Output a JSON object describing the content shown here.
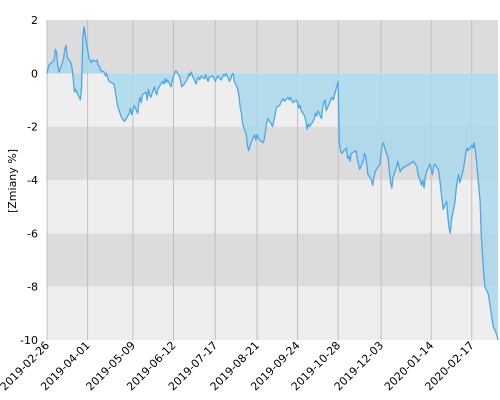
{
  "chart_data": {
    "type": "area",
    "title": "",
    "xlabel": "",
    "ylabel": "[Zmiany %]",
    "ylim": [
      -10,
      2
    ],
    "yticks": [
      2,
      0,
      -2,
      -4,
      -6,
      -8,
      -10
    ],
    "xlim": [
      "2019-02-26",
      "2020-03-10"
    ],
    "xticks": [
      "2019-02-26",
      "2019-04-01",
      "2019-05-09",
      "2019-06-12",
      "2019-07-17",
      "2019-08-21",
      "2019-09-24",
      "2019-10-28",
      "2019-12-03",
      "2020-01-14",
      "2020-02-17"
    ],
    "grid": true,
    "legend": "none",
    "colors": {
      "line": "#4da6e8",
      "fill": "#a9d8ec",
      "band_dark": "#dcdcdc",
      "band_light": "#eeeeee",
      "vgrid": "#c0c0c0"
    },
    "series": [
      {
        "points": [
          [
            "2019-02-26",
            0.0
          ],
          [
            "2019-02-27",
            0.2
          ],
          [
            "2019-02-28",
            0.35
          ],
          [
            "2019-03-01",
            0.35
          ],
          [
            "2019-03-04",
            0.5
          ],
          [
            "2019-03-05",
            0.9
          ],
          [
            "2019-03-06",
            0.8
          ],
          [
            "2019-03-07",
            0.3
          ],
          [
            "2019-03-08",
            0.05
          ],
          [
            "2019-03-11",
            0.4
          ],
          [
            "2019-03-12",
            0.6
          ],
          [
            "2019-03-13",
            0.9
          ],
          [
            "2019-03-14",
            1.05
          ],
          [
            "2019-03-15",
            0.6
          ],
          [
            "2019-03-18",
            0.4
          ],
          [
            "2019-03-19",
            0.2
          ],
          [
            "2019-03-20",
            -0.2
          ],
          [
            "2019-03-21",
            -0.7
          ],
          [
            "2019-03-22",
            -0.6
          ],
          [
            "2019-03-25",
            -0.9
          ],
          [
            "2019-03-26",
            -1.0
          ],
          [
            "2019-03-27",
            -0.5
          ],
          [
            "2019-03-28",
            1.3
          ],
          [
            "2019-03-29",
            1.75
          ],
          [
            "2019-04-01",
            0.9
          ],
          [
            "2019-04-02",
            0.6
          ],
          [
            "2019-04-03",
            0.5
          ],
          [
            "2019-04-04",
            0.4
          ],
          [
            "2019-04-05",
            0.5
          ],
          [
            "2019-04-08",
            0.45
          ],
          [
            "2019-04-09",
            0.5
          ],
          [
            "2019-04-10",
            0.3
          ],
          [
            "2019-04-11",
            0.25
          ],
          [
            "2019-04-12",
            0.1
          ],
          [
            "2019-04-15",
            0.05
          ],
          [
            "2019-04-16",
            -0.1
          ],
          [
            "2019-04-17",
            0.0
          ],
          [
            "2019-04-18",
            -0.2
          ],
          [
            "2019-04-19",
            -0.3
          ],
          [
            "2019-04-23",
            -0.4
          ],
          [
            "2019-04-24",
            -0.6
          ],
          [
            "2019-04-25",
            -0.9
          ],
          [
            "2019-04-26",
            -1.2
          ],
          [
            "2019-04-29",
            -1.6
          ],
          [
            "2019-04-30",
            -1.7
          ],
          [
            "2019-05-02",
            -1.8
          ],
          [
            "2019-05-06",
            -1.5
          ],
          [
            "2019-05-07",
            -1.3
          ],
          [
            "2019-05-08",
            -1.55
          ],
          [
            "2019-05-09",
            -1.4
          ],
          [
            "2019-05-10",
            -1.2
          ],
          [
            "2019-05-13",
            -1.5
          ],
          [
            "2019-05-14",
            -1.1
          ],
          [
            "2019-05-15",
            -0.9
          ],
          [
            "2019-05-16",
            -1.1
          ],
          [
            "2019-05-17",
            -0.8
          ],
          [
            "2019-05-20",
            -0.7
          ],
          [
            "2019-05-21",
            -1.0
          ],
          [
            "2019-05-22",
            -0.6
          ],
          [
            "2019-05-23",
            -0.8
          ],
          [
            "2019-05-24",
            -0.9
          ],
          [
            "2019-05-27",
            -0.5
          ],
          [
            "2019-05-28",
            -0.7
          ],
          [
            "2019-05-29",
            -0.8
          ],
          [
            "2019-05-30",
            -0.6
          ],
          [
            "2019-05-31",
            -0.5
          ],
          [
            "2019-06-03",
            -0.3
          ],
          [
            "2019-06-04",
            -0.4
          ],
          [
            "2019-06-05",
            -0.2
          ],
          [
            "2019-06-06",
            -0.35
          ],
          [
            "2019-06-07",
            -0.25
          ],
          [
            "2019-06-10",
            -0.5
          ],
          [
            "2019-06-11",
            -0.3
          ],
          [
            "2019-06-12",
            -0.1
          ],
          [
            "2019-06-13",
            0.0
          ],
          [
            "2019-06-14",
            0.1
          ],
          [
            "2019-06-17",
            -0.1
          ],
          [
            "2019-06-18",
            -0.3
          ],
          [
            "2019-06-19",
            -0.5
          ],
          [
            "2019-06-21",
            -0.4
          ],
          [
            "2019-06-24",
            -0.2
          ],
          [
            "2019-06-25",
            0.0
          ],
          [
            "2019-06-26",
            -0.1
          ],
          [
            "2019-06-27",
            0.05
          ],
          [
            "2019-06-28",
            -0.1
          ],
          [
            "2019-07-01",
            -0.4
          ],
          [
            "2019-07-02",
            -0.2
          ],
          [
            "2019-07-03",
            -0.15
          ],
          [
            "2019-07-04",
            -0.25
          ],
          [
            "2019-07-05",
            -0.1
          ],
          [
            "2019-07-08",
            -0.2
          ],
          [
            "2019-07-09",
            -0.05
          ],
          [
            "2019-07-10",
            -0.2
          ],
          [
            "2019-07-11",
            -0.3
          ],
          [
            "2019-07-12",
            -0.15
          ],
          [
            "2019-07-15",
            -0.1
          ],
          [
            "2019-07-16",
            -0.2
          ],
          [
            "2019-07-17",
            -0.3
          ],
          [
            "2019-07-18",
            -0.2
          ],
          [
            "2019-07-19",
            -0.1
          ],
          [
            "2019-07-22",
            -0.25
          ],
          [
            "2019-07-23",
            -0.15
          ],
          [
            "2019-07-24",
            -0.05
          ],
          [
            "2019-07-25",
            -0.1
          ],
          [
            "2019-07-26",
            0.0
          ],
          [
            "2019-07-29",
            -0.3
          ],
          [
            "2019-07-30",
            -0.2
          ],
          [
            "2019-07-31",
            -0.05
          ],
          [
            "2019-08-01",
            0.0
          ],
          [
            "2019-08-02",
            -0.3
          ],
          [
            "2019-08-05",
            -0.6
          ],
          [
            "2019-08-06",
            -0.9
          ],
          [
            "2019-08-07",
            -1.3
          ],
          [
            "2019-08-08",
            -1.5
          ],
          [
            "2019-08-09",
            -1.9
          ],
          [
            "2019-08-12",
            -2.3
          ],
          [
            "2019-08-13",
            -2.7
          ],
          [
            "2019-08-14",
            -2.9
          ],
          [
            "2019-08-16",
            -2.6
          ],
          [
            "2019-08-19",
            -2.3
          ],
          [
            "2019-08-20",
            -2.5
          ],
          [
            "2019-08-21",
            -2.3
          ],
          [
            "2019-08-22",
            -2.4
          ],
          [
            "2019-08-23",
            -2.5
          ],
          [
            "2019-08-26",
            -2.6
          ],
          [
            "2019-08-27",
            -2.5
          ],
          [
            "2019-08-28",
            -2.2
          ],
          [
            "2019-08-29",
            -1.9
          ],
          [
            "2019-08-30",
            -1.7
          ],
          [
            "2019-09-02",
            -1.9
          ],
          [
            "2019-09-03",
            -2.0
          ],
          [
            "2019-09-04",
            -1.8
          ],
          [
            "2019-09-05",
            -1.6
          ],
          [
            "2019-09-06",
            -1.3
          ],
          [
            "2019-09-09",
            -1.2
          ],
          [
            "2019-09-10",
            -1.1
          ],
          [
            "2019-09-11",
            -1.0
          ],
          [
            "2019-09-12",
            -0.95
          ],
          [
            "2019-09-13",
            -1.05
          ],
          [
            "2019-09-16",
            -0.9
          ],
          [
            "2019-09-17",
            -1.0
          ],
          [
            "2019-09-18",
            -0.9
          ],
          [
            "2019-09-19",
            -1.0
          ],
          [
            "2019-09-20",
            -1.1
          ],
          [
            "2019-09-23",
            -1.0
          ],
          [
            "2019-09-24",
            -1.1
          ],
          [
            "2019-09-25",
            -1.3
          ],
          [
            "2019-09-26",
            -1.2
          ],
          [
            "2019-09-27",
            -1.4
          ],
          [
            "2019-09-30",
            -1.6
          ],
          [
            "2019-10-01",
            -1.8
          ],
          [
            "2019-10-02",
            -2.1
          ],
          [
            "2019-10-03",
            -1.9
          ],
          [
            "2019-10-04",
            -2.0
          ],
          [
            "2019-10-07",
            -1.8
          ],
          [
            "2019-10-08",
            -1.7
          ],
          [
            "2019-10-09",
            -1.5
          ],
          [
            "2019-10-10",
            -1.6
          ],
          [
            "2019-10-11",
            -1.4
          ],
          [
            "2019-10-14",
            -1.7
          ],
          [
            "2019-10-15",
            -1.3
          ],
          [
            "2019-10-16",
            -1.1
          ],
          [
            "2019-10-17",
            -1.0
          ],
          [
            "2019-10-18",
            -1.4
          ],
          [
            "2019-10-21",
            -1.1
          ],
          [
            "2019-10-22",
            -0.95
          ],
          [
            "2019-10-23",
            -0.9
          ],
          [
            "2019-10-24",
            -1.0
          ],
          [
            "2019-10-25",
            -0.8
          ],
          [
            "2019-10-28",
            -0.3
          ],
          [
            "2019-10-29",
            -2.6
          ],
          [
            "2019-10-30",
            -2.9
          ],
          [
            "2019-10-31",
            -3.0
          ],
          [
            "2019-11-04",
            -2.8
          ],
          [
            "2019-11-05",
            -3.2
          ],
          [
            "2019-11-06",
            -3.1
          ],
          [
            "2019-11-07",
            -3.3
          ],
          [
            "2019-11-08",
            -3.0
          ],
          [
            "2019-11-12",
            -2.9
          ],
          [
            "2019-11-13",
            -3.2
          ],
          [
            "2019-11-14",
            -3.4
          ],
          [
            "2019-11-15",
            -3.6
          ],
          [
            "2019-11-18",
            -3.3
          ],
          [
            "2019-11-19",
            -3.0
          ],
          [
            "2019-11-20",
            -3.1
          ],
          [
            "2019-11-21",
            -3.4
          ],
          [
            "2019-11-22",
            -3.8
          ],
          [
            "2019-11-25",
            -4.0
          ],
          [
            "2019-11-26",
            -4.2
          ],
          [
            "2019-11-27",
            -3.9
          ],
          [
            "2019-11-28",
            -3.7
          ],
          [
            "2019-11-29",
            -3.6
          ],
          [
            "2019-12-02",
            -3.4
          ],
          [
            "2019-12-03",
            -3.0
          ],
          [
            "2019-12-04",
            -2.7
          ],
          [
            "2019-12-05",
            -2.6
          ],
          [
            "2019-12-06",
            -2.8
          ],
          [
            "2019-12-09",
            -3.2
          ],
          [
            "2019-12-10",
            -3.7
          ],
          [
            "2019-12-11",
            -4.1
          ],
          [
            "2019-12-12",
            -4.3
          ],
          [
            "2019-12-13",
            -3.9
          ],
          [
            "2019-12-16",
            -3.5
          ],
          [
            "2019-12-17",
            -3.3
          ],
          [
            "2019-12-18",
            -3.5
          ],
          [
            "2019-12-19",
            -3.7
          ],
          [
            "2019-12-20",
            -3.6
          ],
          [
            "2019-12-23",
            -3.5
          ],
          [
            "2019-12-27",
            -3.4
          ],
          [
            "2019-12-30",
            -3.3
          ],
          [
            "2020-01-02",
            -3.5
          ],
          [
            "2020-01-03",
            -3.8
          ],
          [
            "2020-01-06",
            -4.2
          ],
          [
            "2020-01-07",
            -4.0
          ],
          [
            "2020-01-08",
            -4.3
          ],
          [
            "2020-01-09",
            -3.9
          ],
          [
            "2020-01-10",
            -3.7
          ],
          [
            "2020-01-13",
            -3.4
          ],
          [
            "2020-01-14",
            -3.6
          ],
          [
            "2020-01-15",
            -3.8
          ],
          [
            "2020-01-16",
            -3.5
          ],
          [
            "2020-01-17",
            -3.4
          ],
          [
            "2020-01-20",
            -3.6
          ],
          [
            "2020-01-21",
            -3.9
          ],
          [
            "2020-01-22",
            -4.3
          ],
          [
            "2020-01-23",
            -4.7
          ],
          [
            "2020-01-24",
            -5.1
          ],
          [
            "2020-01-27",
            -4.8
          ],
          [
            "2020-01-28",
            -5.4
          ],
          [
            "2020-01-29",
            -5.8
          ],
          [
            "2020-01-30",
            -6.0
          ],
          [
            "2020-01-31",
            -5.5
          ],
          [
            "2020-02-03",
            -4.8
          ],
          [
            "2020-02-04",
            -4.3
          ],
          [
            "2020-02-05",
            -4.0
          ],
          [
            "2020-02-06",
            -3.8
          ],
          [
            "2020-02-07",
            -4.1
          ],
          [
            "2020-02-10",
            -3.6
          ],
          [
            "2020-02-11",
            -3.3
          ],
          [
            "2020-02-12",
            -3.0
          ],
          [
            "2020-02-13",
            -2.8
          ],
          [
            "2020-02-14",
            -2.9
          ],
          [
            "2020-02-17",
            -2.7
          ],
          [
            "2020-02-18",
            -2.8
          ],
          [
            "2020-02-19",
            -2.6
          ],
          [
            "2020-02-20",
            -2.9
          ],
          [
            "2020-02-21",
            -3.3
          ],
          [
            "2020-02-24",
            -4.8
          ],
          [
            "2020-02-25",
            -6.1
          ],
          [
            "2020-02-26",
            -6.8
          ],
          [
            "2020-02-27",
            -7.5
          ],
          [
            "2020-02-28",
            -8.0
          ],
          [
            "2020-03-02",
            -8.3
          ],
          [
            "2020-03-03",
            -8.6
          ],
          [
            "2020-03-04",
            -8.9
          ],
          [
            "2020-03-05",
            -9.2
          ],
          [
            "2020-03-06",
            -9.5
          ],
          [
            "2020-03-09",
            -9.8
          ],
          [
            "2020-03-10",
            -10.0
          ]
        ]
      }
    ]
  }
}
